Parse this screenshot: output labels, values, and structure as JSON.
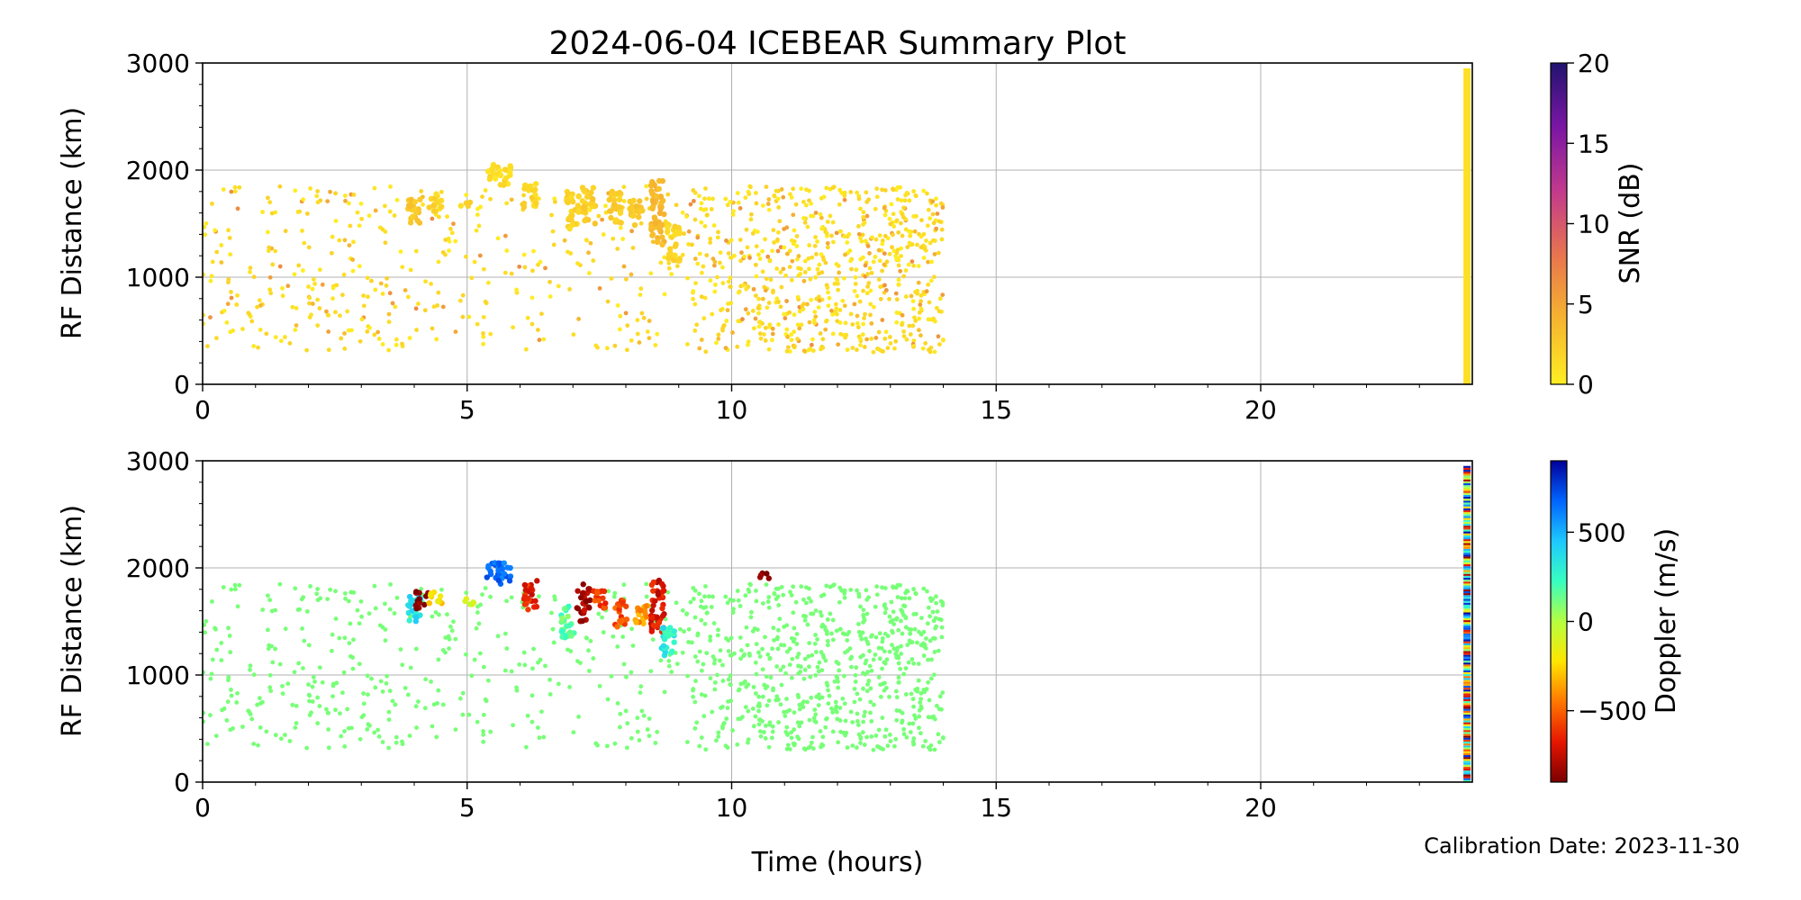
{
  "title": "2024-06-04 ICEBEAR Summary Plot",
  "calibration_note": "Calibration Date: 2023-11-30",
  "colors": {
    "snr_colormap": [
      "#ffee22",
      "#f6b52f",
      "#e8754e",
      "#c23a8c",
      "#7b16a4",
      "#21146e"
    ],
    "doppler_colormap": [
      "#7a0000",
      "#e61600",
      "#ff7700",
      "#ffe500",
      "#b5ff40",
      "#37ffc0",
      "#1ec8ff",
      "#0064ff",
      "#00009a"
    ],
    "grid": "#b0b0b0",
    "background_dots": "#77ff77"
  },
  "chart_data": [
    {
      "type": "scatter",
      "panel": "top",
      "xlabel": "",
      "ylabel": "RF Distance (km)",
      "xlim": [
        0,
        24
      ],
      "ylim": [
        0,
        3000
      ],
      "x_ticks": [
        0,
        5,
        10,
        15,
        20
      ],
      "x_tick_labels": [
        "0",
        "5",
        "10",
        "15",
        "20"
      ],
      "y_ticks": [
        0,
        1000,
        2000,
        3000
      ],
      "y_tick_labels": [
        "0",
        "1000",
        "2000",
        "3000"
      ],
      "grid": true,
      "color_variable": "SNR",
      "colorbar": {
        "label": "SNR (dB)",
        "range": [
          0,
          20
        ],
        "ticks": [
          0,
          5,
          10,
          15,
          20
        ],
        "tick_labels": [
          "0",
          "5",
          "10",
          "15",
          "20"
        ]
      },
      "dense_region": {
        "x_range": [
          0,
          14
        ],
        "y_range": [
          300,
          1900
        ]
      },
      "clusters": [
        {
          "x": 4.0,
          "y0": 1500,
          "y1": 1750,
          "snr": 2
        },
        {
          "x": 4.4,
          "y0": 1600,
          "y1": 1780,
          "snr": 1
        },
        {
          "x": 5.0,
          "y0": 1650,
          "y1": 1700,
          "snr": 1
        },
        {
          "x": 5.5,
          "y0": 1900,
          "y1": 2050,
          "snr": 0.5
        },
        {
          "x": 5.7,
          "y0": 1850,
          "y1": 2050,
          "snr": 0.5
        },
        {
          "x": 6.2,
          "y0": 1650,
          "y1": 1880,
          "snr": 1
        },
        {
          "x": 7.0,
          "y0": 1450,
          "y1": 1800,
          "snr": 1
        },
        {
          "x": 7.3,
          "y0": 1500,
          "y1": 1850,
          "snr": 1.5
        },
        {
          "x": 7.8,
          "y0": 1500,
          "y1": 1800,
          "snr": 1.5
        },
        {
          "x": 8.2,
          "y0": 1480,
          "y1": 1720,
          "snr": 2
        },
        {
          "x": 8.6,
          "y0": 1300,
          "y1": 1900,
          "snr": 3
        },
        {
          "x": 8.9,
          "y0": 1150,
          "y1": 1500,
          "snr": 1
        }
      ],
      "vertical_band": {
        "x": 23.9,
        "y0": 0,
        "y1": 2950,
        "snr": 0.3
      }
    },
    {
      "type": "scatter",
      "panel": "bottom",
      "xlabel": "Time (hours)",
      "ylabel": "RF Distance (km)",
      "xlim": [
        0,
        24
      ],
      "ylim": [
        0,
        3000
      ],
      "x_ticks": [
        0,
        5,
        10,
        15,
        20
      ],
      "x_tick_labels": [
        "0",
        "5",
        "10",
        "15",
        "20"
      ],
      "y_ticks": [
        0,
        1000,
        2000,
        3000
      ],
      "y_tick_labels": [
        "0",
        "1000",
        "2000",
        "3000"
      ],
      "grid": true,
      "color_variable": "Doppler",
      "colorbar": {
        "label": "Doppler (m/s)",
        "range": [
          -900,
          900
        ],
        "ticks": [
          500,
          0,
          -500
        ],
        "tick_labels": [
          "500",
          "0",
          "−500"
        ]
      },
      "dense_region": {
        "x_range": [
          0,
          14
        ],
        "y_range": [
          300,
          1900
        ]
      },
      "clusters": [
        {
          "x": 4.0,
          "y0": 1500,
          "y1": 1750,
          "doppler": 350
        },
        {
          "x": 4.15,
          "y0": 1620,
          "y1": 1780,
          "doppler": -850
        },
        {
          "x": 4.4,
          "y0": 1650,
          "y1": 1780,
          "doppler": -250
        },
        {
          "x": 5.0,
          "y0": 1650,
          "y1": 1720,
          "doppler": -100
        },
        {
          "x": 5.5,
          "y0": 1900,
          "y1": 2050,
          "doppler": 650
        },
        {
          "x": 5.7,
          "y0": 1850,
          "y1": 2050,
          "doppler": 650
        },
        {
          "x": 6.2,
          "y0": 1600,
          "y1": 1880,
          "doppler": -650
        },
        {
          "x": 6.9,
          "y0": 1350,
          "y1": 1650,
          "doppler": 150
        },
        {
          "x": 7.2,
          "y0": 1500,
          "y1": 1850,
          "doppler": -800
        },
        {
          "x": 7.5,
          "y0": 1600,
          "y1": 1800,
          "doppler": -600
        },
        {
          "x": 7.9,
          "y0": 1450,
          "y1": 1700,
          "doppler": -550
        },
        {
          "x": 8.3,
          "y0": 1450,
          "y1": 1650,
          "doppler": -400
        },
        {
          "x": 8.6,
          "y0": 1400,
          "y1": 1900,
          "doppler": -700
        },
        {
          "x": 8.8,
          "y0": 1150,
          "y1": 1450,
          "doppler": 300
        },
        {
          "x": 10.6,
          "y0": 1900,
          "y1": 1960,
          "doppler": -850
        }
      ],
      "background_doppler": -100,
      "vertical_band": {
        "x": 23.9,
        "y0": 0,
        "y1": 2950,
        "doppler": "mixed"
      }
    }
  ]
}
